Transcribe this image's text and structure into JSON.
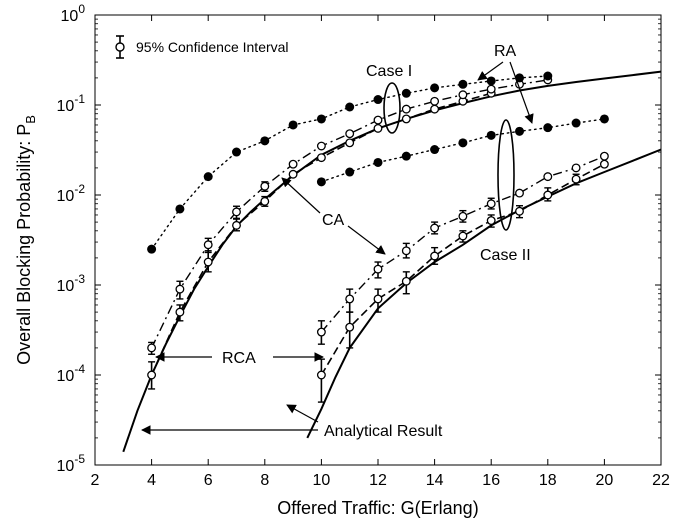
{
  "chart_data": {
    "type": "line",
    "title": "",
    "xlabel": "Offered Traffic: G(Erlang)",
    "ylabel": "Overall Blocking Probability: P",
    "ylabel_sub": "B",
    "xlim": [
      2,
      22
    ],
    "ylim": [
      1e-05,
      1
    ],
    "yscale": "log",
    "grid": false,
    "x_ticks": [
      2,
      4,
      6,
      8,
      10,
      12,
      14,
      16,
      18,
      20,
      22
    ],
    "y_ticks": [
      {
        "value": 1e-05,
        "base": "10",
        "exp": "-5"
      },
      {
        "value": 0.0001,
        "base": "10",
        "exp": "-4"
      },
      {
        "value": 0.001,
        "base": "10",
        "exp": "-3"
      },
      {
        "value": 0.01,
        "base": "10",
        "exp": "-2"
      },
      {
        "value": 0.1,
        "base": "10",
        "exp": "-1"
      },
      {
        "value": 1,
        "base": "10",
        "exp": "0"
      }
    ],
    "legend": {
      "label": "95% Confidence Interval",
      "placement": "top-left"
    },
    "series": [
      {
        "style": "analytical",
        "x": [
          3.0,
          3.5,
          4,
          4.5,
          5,
          5.5,
          6,
          6.5,
          7,
          7.5,
          8,
          9,
          10,
          11,
          12,
          13,
          14,
          15,
          16,
          17,
          18,
          19,
          20,
          21,
          22
        ],
        "y": [
          1.4e-05,
          4e-05,
          0.0001,
          0.00022,
          0.00045,
          0.0009,
          0.0016,
          0.0028,
          0.0045,
          0.0065,
          0.009,
          0.0165,
          0.028,
          0.04,
          0.055,
          0.07,
          0.087,
          0.105,
          0.125,
          0.145,
          0.163,
          0.18,
          0.197,
          0.215,
          0.235
        ]
      },
      {
        "style": "analytical",
        "x": [
          9.5,
          10,
          10.5,
          11,
          12,
          13,
          14,
          15,
          16,
          17,
          18,
          19,
          20,
          21,
          22
        ],
        "y": [
          2e-05,
          4.2e-05,
          9.5e-05,
          0.0002,
          0.00055,
          0.00105,
          0.0018,
          0.0028,
          0.0046,
          0.0068,
          0.0096,
          0.0135,
          0.018,
          0.024,
          0.032
        ]
      },
      {
        "style": "RCA",
        "x": [
          4,
          5,
          6,
          7,
          8,
          9,
          10,
          11,
          12,
          13,
          14,
          15,
          16
        ],
        "y": [
          0.0001,
          0.0005,
          0.0018,
          0.0046,
          0.0085,
          0.017,
          0.026,
          0.038,
          0.055,
          0.07,
          0.09,
          0.11,
          0.135
        ],
        "err": [
          [
            7e-05,
            0.00014
          ],
          [
            0.0004,
            0.0006
          ],
          [
            0.0014,
            0.0024
          ],
          [
            0.004,
            0.0054
          ],
          [
            0.0075,
            0.0096
          ],
          null,
          null,
          null,
          null,
          null,
          null,
          null,
          null
        ]
      },
      {
        "style": "RCA",
        "x": [
          10,
          11,
          12,
          13,
          14,
          15,
          16,
          17,
          18,
          19,
          20
        ],
        "y": [
          0.0001,
          0.00034,
          0.0007,
          0.0011,
          0.0021,
          0.0035,
          0.0052,
          0.0066,
          0.01,
          0.015,
          0.022
        ],
        "err": [
          [
            5e-05,
            0.00015
          ],
          [
            0.0002,
            0.0005
          ],
          [
            0.0005,
            0.0009
          ],
          [
            0.0008,
            0.0014
          ],
          [
            0.0017,
            0.0026
          ],
          [
            0.003,
            0.004
          ],
          [
            0.0044,
            0.006
          ],
          [
            0.0056,
            0.0076
          ],
          [
            0.0086,
            0.012
          ],
          [
            0.013,
            0.017
          ],
          null
        ]
      },
      {
        "style": "CA",
        "x": [
          4,
          5,
          6,
          7,
          8,
          9,
          10,
          11,
          12,
          13,
          14,
          15,
          16,
          17,
          18
        ],
        "y": [
          0.0002,
          0.0009,
          0.0028,
          0.0065,
          0.0125,
          0.022,
          0.035,
          0.048,
          0.068,
          0.09,
          0.11,
          0.13,
          0.15,
          0.17,
          0.19
        ],
        "err": [
          [
            0.00017,
            0.00023
          ],
          [
            0.0007,
            0.0011
          ],
          [
            0.0023,
            0.0033
          ],
          [
            0.0055,
            0.0075
          ],
          [
            0.011,
            0.014
          ],
          null,
          null,
          null,
          null,
          null,
          null,
          null,
          null,
          null,
          null
        ]
      },
      {
        "style": "CA",
        "x": [
          10,
          11,
          12,
          13,
          14,
          15,
          16,
          17,
          18,
          19,
          20
        ],
        "y": [
          0.0003,
          0.0007,
          0.0015,
          0.0024,
          0.0043,
          0.0058,
          0.008,
          0.0105,
          0.016,
          0.02,
          0.027
        ],
        "err": [
          [
            0.00022,
            0.0004
          ],
          [
            0.0005,
            0.0009
          ],
          [
            0.0012,
            0.0018
          ],
          [
            0.002,
            0.0029
          ],
          [
            0.0037,
            0.005
          ],
          [
            0.005,
            0.0067
          ],
          [
            0.007,
            0.0092
          ],
          null,
          null,
          null,
          null
        ]
      },
      {
        "style": "RA",
        "x": [
          4,
          5,
          6,
          7,
          8,
          9,
          10,
          11,
          12,
          13,
          14,
          15,
          16,
          17,
          18
        ],
        "y": [
          0.0025,
          0.007,
          0.016,
          0.03,
          0.04,
          0.06,
          0.07,
          0.095,
          0.115,
          0.135,
          0.155,
          0.17,
          0.185,
          0.2,
          0.21
        ]
      },
      {
        "style": "RA",
        "x": [
          10,
          11,
          12,
          13,
          14,
          15,
          16,
          17,
          18,
          19,
          20
        ],
        "y": [
          0.014,
          0.018,
          0.023,
          0.027,
          0.032,
          0.038,
          0.046,
          0.051,
          0.056,
          0.063,
          0.07
        ]
      }
    ],
    "annotations": [
      {
        "id": "case1",
        "text": "Case I"
      },
      {
        "id": "case2",
        "text": "Case II"
      },
      {
        "id": "ra",
        "text": "RA"
      },
      {
        "id": "ca",
        "text": "CA"
      },
      {
        "id": "rca",
        "text": "RCA"
      },
      {
        "id": "analytical",
        "text": "Analytical Result"
      }
    ]
  }
}
